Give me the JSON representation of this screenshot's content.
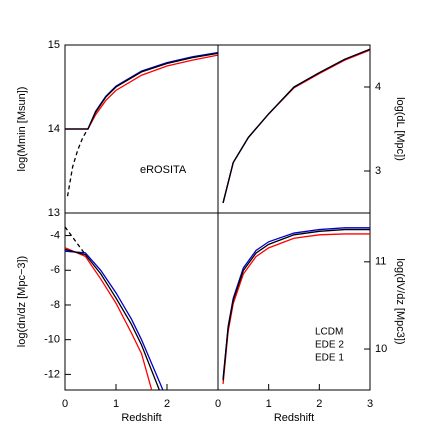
{
  "chart_data": [
    {
      "type": "line",
      "ylabel": "log(Mmin [Msun])",
      "yaxis_side": "left",
      "annotation": "eROSITA",
      "xlim": [
        0,
        3
      ],
      "ylim": [
        13,
        15
      ],
      "yticks": [
        13,
        14,
        15
      ],
      "series": [
        {
          "color": "#ff0000",
          "x": [
            0,
            0.2,
            0.45,
            0.6,
            0.8,
            1.0,
            1.5,
            2.0,
            2.5,
            3.0
          ],
          "values": [
            14.0,
            14.0,
            14.0,
            14.17,
            14.34,
            14.46,
            14.64,
            14.75,
            14.82,
            14.88
          ]
        },
        {
          "color": "#0000cc",
          "x": [
            0,
            0.2,
            0.45,
            0.6,
            0.8,
            1.0,
            1.5,
            2.0,
            2.5,
            3.0
          ],
          "values": [
            14.0,
            14.0,
            14.0,
            14.21,
            14.39,
            14.51,
            14.69,
            14.79,
            14.86,
            14.91
          ]
        },
        {
          "color": "#000000",
          "x": [
            0,
            0.2,
            0.45,
            0.6,
            0.8,
            1.0,
            1.5,
            2.0,
            2.5,
            3.0
          ],
          "values": [
            14.0,
            14.0,
            14.0,
            14.2,
            14.38,
            14.5,
            14.68,
            14.78,
            14.85,
            14.9
          ]
        },
        {
          "color": "#000000",
          "dashed": true,
          "x": [
            0.05,
            0.15,
            0.25,
            0.35,
            0.45
          ],
          "values": [
            13.2,
            13.55,
            13.75,
            13.9,
            14.0
          ]
        }
      ]
    },
    {
      "type": "line",
      "ylabel": "log(dL [Mpc])",
      "yaxis_side": "right",
      "xlim": [
        0,
        3
      ],
      "ylim": [
        2.5,
        4.5
      ],
      "yticks": [
        3,
        4
      ],
      "series": [
        {
          "color": "#ff0000",
          "x": [
            0.1,
            0.3,
            0.6,
            1.0,
            1.5,
            2.0,
            2.5,
            3.0
          ],
          "values": [
            2.62,
            3.1,
            3.4,
            3.68,
            3.99,
            4.16,
            4.32,
            4.44
          ]
        },
        {
          "color": "#0000cc",
          "x": [
            0.1,
            0.3,
            0.6,
            1.0,
            1.5,
            2.0,
            2.5,
            3.0
          ],
          "values": [
            2.62,
            3.1,
            3.4,
            3.68,
            4.0,
            4.17,
            4.33,
            4.45
          ]
        },
        {
          "color": "#000000",
          "x": [
            0.1,
            0.3,
            0.6,
            1.0,
            1.5,
            2.0,
            2.5,
            3.0
          ],
          "values": [
            2.62,
            3.1,
            3.4,
            3.68,
            4.0,
            4.17,
            4.33,
            4.45
          ]
        }
      ]
    },
    {
      "type": "line",
      "ylabel": "log(dn/dz [Mpc−3])",
      "yaxis_side": "left",
      "xlabel": "Redshift",
      "xlim": [
        0,
        3
      ],
      "xticks": [
        0,
        1,
        2
      ],
      "ylim": [
        -12.9,
        -2.7
      ],
      "yticks": [
        -12,
        -10,
        -8,
        -6,
        -4
      ],
      "series": [
        {
          "color": "#ff0000",
          "x": [
            0,
            0.4,
            0.7,
            1.0,
            1.3,
            1.5,
            1.7
          ],
          "values": [
            -4.7,
            -5.2,
            -6.5,
            -7.9,
            -9.6,
            -10.8,
            -12.9
          ]
        },
        {
          "color": "#0000cc",
          "x": [
            0,
            0.4,
            0.7,
            1.0,
            1.3,
            1.5,
            1.92
          ],
          "values": [
            -4.9,
            -5.0,
            -6.0,
            -7.3,
            -8.8,
            -10.0,
            -12.9
          ]
        },
        {
          "color": "#000000",
          "x": [
            0,
            0.4,
            0.7,
            1.0,
            1.3,
            1.5,
            1.85
          ],
          "values": [
            -4.8,
            -5.1,
            -6.2,
            -7.6,
            -9.1,
            -10.3,
            -12.9
          ]
        },
        {
          "color": "#000000",
          "dashed": true,
          "x": [
            0,
            0.2,
            0.4
          ],
          "values": [
            -3.5,
            -4.3,
            -5.1
          ]
        }
      ]
    },
    {
      "type": "line",
      "ylabel": "log(dV/dz [Mpc3])",
      "yaxis_side": "right",
      "xlabel": "Redshift",
      "xlim": [
        0,
        3
      ],
      "xticks": [
        0,
        1,
        2,
        3
      ],
      "ylim": [
        9.53,
        11.56
      ],
      "yticks": [
        10,
        11
      ],
      "series": [
        {
          "name": "EDE 1",
          "color": "#ff0000",
          "x": [
            0.1,
            0.2,
            0.3,
            0.5,
            0.75,
            1.0,
            1.5,
            2.0,
            2.5,
            3.0
          ],
          "values": [
            9.6,
            10.2,
            10.52,
            10.86,
            11.06,
            11.16,
            11.27,
            11.31,
            11.32,
            11.32
          ]
        },
        {
          "name": "EDE 2",
          "color": "#0000cc",
          "x": [
            0.1,
            0.2,
            0.3,
            0.5,
            0.75,
            1.0,
            1.5,
            2.0,
            2.5,
            3.0
          ],
          "values": [
            9.66,
            10.26,
            10.58,
            10.93,
            11.13,
            11.23,
            11.33,
            11.37,
            11.39,
            11.39
          ]
        },
        {
          "name": "LCDM",
          "color": "#000000",
          "x": [
            0.1,
            0.2,
            0.3,
            0.5,
            0.75,
            1.0,
            1.5,
            2.0,
            2.5,
            3.0
          ],
          "values": [
            9.64,
            10.24,
            10.56,
            10.9,
            11.1,
            11.2,
            11.31,
            11.35,
            11.37,
            11.37
          ]
        }
      ]
    }
  ]
}
